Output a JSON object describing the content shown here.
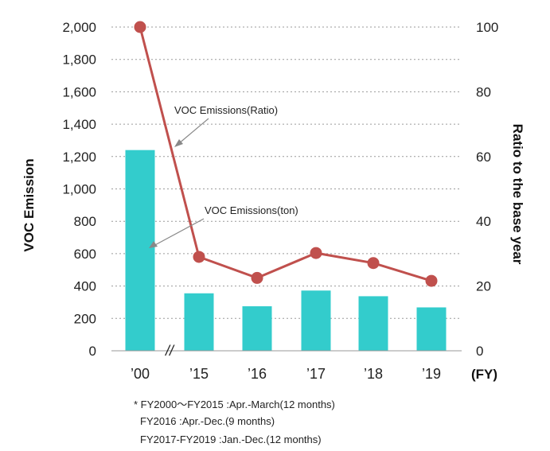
{
  "chart_data": {
    "type": "bar+line",
    "categories": [
      "’00",
      "’15",
      "’16",
      "’17",
      "’18",
      "’19"
    ],
    "x_unit": "(FY)",
    "axis_break_mark": "//",
    "ylabel_left": "VOC Emission",
    "ylabel_right": "Ratio to the base year",
    "ylim_left": [
      0,
      2000
    ],
    "ylim_right": [
      0,
      100
    ],
    "yticks_left": [
      "0",
      "200",
      "400",
      "600",
      "800",
      "1,000",
      "1,200",
      "1,400",
      "1,600",
      "1,800",
      "2,000"
    ],
    "yticks_right": [
      "0",
      "20",
      "40",
      "60",
      "80",
      "100"
    ],
    "grid": "horizontal dotted",
    "series": [
      {
        "name": "VOC Emissions(ton)",
        "type": "bar",
        "axis": "left",
        "color": "#33CCCC",
        "values": [
          1240,
          355,
          275,
          372,
          337,
          268
        ]
      },
      {
        "name": "VOC Emissions(Ratio)",
        "type": "line",
        "axis": "right",
        "color": "#C0504D",
        "values": [
          100,
          29,
          22.5,
          30.2,
          27.1,
          21.6
        ]
      }
    ],
    "annotations": [
      "VOC Emissions(Ratio)",
      "VOC Emissions(ton)"
    ]
  },
  "notes": [
    "* FY2000～FY2015 :Apr.-March(12 months)",
    "FY2016 :Apr.-Dec.(9 months)",
    "FY2017-FY2019 :Jan.-Dec.(12 months)"
  ]
}
